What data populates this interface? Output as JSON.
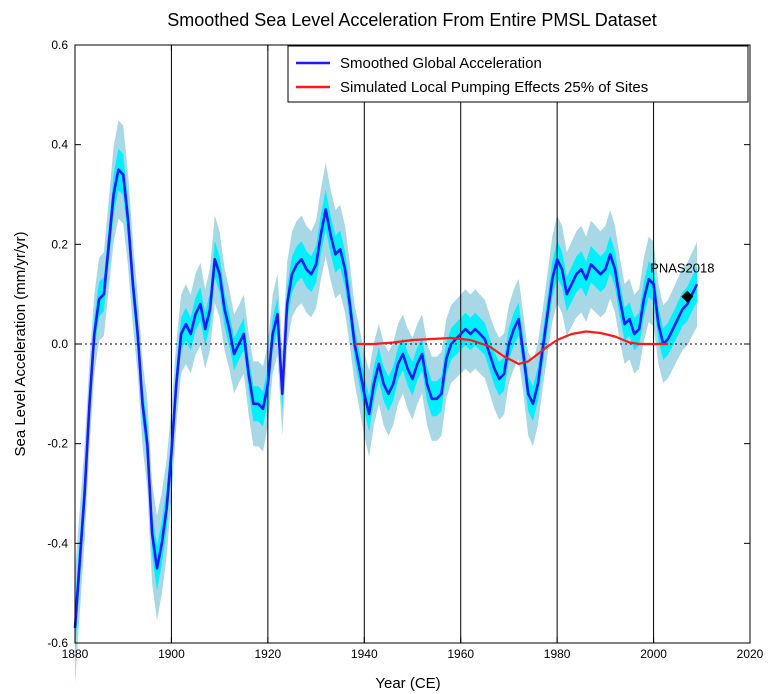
{
  "chart_data": {
    "type": "line",
    "title": "Smoothed Sea Level Acceleration From Entire PMSL Dataset",
    "xlabel": "Year (CE)",
    "ylabel": "Sea Level Acceleration (mm/yr/yr)",
    "xlim": [
      1880,
      2020
    ],
    "ylim": [
      -0.6,
      0.6
    ],
    "x_ticks": [
      "1880",
      "1900",
      "1920",
      "1940",
      "1960",
      "1980",
      "2000",
      "2020"
    ],
    "y_ticks": [
      "-0.6",
      "-0.4",
      "-0.2",
      "0.0",
      "0.2",
      "0.4",
      "0.6"
    ],
    "vertical_lines": [
      1900,
      1920,
      1940,
      1960,
      1980,
      2000
    ],
    "zero_line": "dotted",
    "legend_position": "top-right",
    "series": [
      {
        "name": "Smoothed Global Acceleration",
        "color": "#1a1aff",
        "band_inner_color": "#00f0ff",
        "band_outer_color": "#a8d8e6",
        "points": [
          [
            1880,
            -0.57
          ],
          [
            1882,
            -0.3
          ],
          [
            1883,
            -0.12
          ],
          [
            1884,
            0.02
          ],
          [
            1885,
            0.09
          ],
          [
            1886,
            0.1
          ],
          [
            1887,
            0.2
          ],
          [
            1888,
            0.3
          ],
          [
            1889,
            0.35
          ],
          [
            1890,
            0.34
          ],
          [
            1891,
            0.25
          ],
          [
            1892,
            0.12
          ],
          [
            1893,
            0.02
          ],
          [
            1894,
            -0.12
          ],
          [
            1895,
            -0.2
          ],
          [
            1896,
            -0.38
          ],
          [
            1897,
            -0.45
          ],
          [
            1898,
            -0.4
          ],
          [
            1899,
            -0.33
          ],
          [
            1900,
            -0.22
          ],
          [
            1901,
            -0.08
          ],
          [
            1902,
            0.02
          ],
          [
            1903,
            0.04
          ],
          [
            1904,
            0.02
          ],
          [
            1905,
            0.06
          ],
          [
            1906,
            0.08
          ],
          [
            1907,
            0.03
          ],
          [
            1908,
            0.07
          ],
          [
            1909,
            0.17
          ],
          [
            1910,
            0.14
          ],
          [
            1911,
            0.07
          ],
          [
            1912,
            0.03
          ],
          [
            1913,
            -0.02
          ],
          [
            1914,
            0.0
          ],
          [
            1915,
            0.02
          ],
          [
            1916,
            -0.06
          ],
          [
            1917,
            -0.12
          ],
          [
            1918,
            -0.12
          ],
          [
            1919,
            -0.13
          ],
          [
            1920,
            -0.08
          ],
          [
            1921,
            0.02
          ],
          [
            1922,
            0.06
          ],
          [
            1923,
            -0.1
          ],
          [
            1924,
            0.08
          ],
          [
            1925,
            0.14
          ],
          [
            1926,
            0.16
          ],
          [
            1927,
            0.17
          ],
          [
            1928,
            0.15
          ],
          [
            1929,
            0.14
          ],
          [
            1930,
            0.16
          ],
          [
            1931,
            0.22
          ],
          [
            1932,
            0.27
          ],
          [
            1933,
            0.22
          ],
          [
            1934,
            0.18
          ],
          [
            1935,
            0.19
          ],
          [
            1936,
            0.15
          ],
          [
            1937,
            0.08
          ],
          [
            1938,
            0.0
          ],
          [
            1939,
            -0.05
          ],
          [
            1940,
            -0.1
          ],
          [
            1941,
            -0.14
          ],
          [
            1942,
            -0.08
          ],
          [
            1943,
            -0.04
          ],
          [
            1944,
            -0.08
          ],
          [
            1945,
            -0.1
          ],
          [
            1946,
            -0.08
          ],
          [
            1947,
            -0.04
          ],
          [
            1948,
            -0.02
          ],
          [
            1949,
            -0.05
          ],
          [
            1950,
            -0.07
          ],
          [
            1951,
            -0.04
          ],
          [
            1952,
            -0.02
          ],
          [
            1953,
            -0.08
          ],
          [
            1954,
            -0.11
          ],
          [
            1955,
            -0.11
          ],
          [
            1956,
            -0.1
          ],
          [
            1957,
            -0.03
          ],
          [
            1958,
            0.0
          ],
          [
            1959,
            0.01
          ],
          [
            1960,
            0.02
          ],
          [
            1961,
            0.03
          ],
          [
            1962,
            0.02
          ],
          [
            1963,
            0.03
          ],
          [
            1964,
            0.02
          ],
          [
            1965,
            0.01
          ],
          [
            1966,
            -0.02
          ],
          [
            1967,
            -0.05
          ],
          [
            1968,
            -0.07
          ],
          [
            1969,
            -0.06
          ],
          [
            1970,
            0.0
          ],
          [
            1971,
            0.03
          ],
          [
            1972,
            0.05
          ],
          [
            1973,
            -0.02
          ],
          [
            1974,
            -0.1
          ],
          [
            1975,
            -0.12
          ],
          [
            1976,
            -0.08
          ],
          [
            1977,
            -0.01
          ],
          [
            1978,
            0.06
          ],
          [
            1979,
            0.13
          ],
          [
            1980,
            0.17
          ],
          [
            1981,
            0.15
          ],
          [
            1982,
            0.1
          ],
          [
            1983,
            0.12
          ],
          [
            1984,
            0.14
          ],
          [
            1985,
            0.15
          ],
          [
            1986,
            0.13
          ],
          [
            1987,
            0.16
          ],
          [
            1988,
            0.15
          ],
          [
            1989,
            0.14
          ],
          [
            1990,
            0.15
          ],
          [
            1991,
            0.18
          ],
          [
            1992,
            0.15
          ],
          [
            1993,
            0.09
          ],
          [
            1994,
            0.04
          ],
          [
            1995,
            0.05
          ],
          [
            1996,
            0.02
          ],
          [
            1997,
            0.03
          ],
          [
            1998,
            0.09
          ],
          [
            1999,
            0.13
          ],
          [
            2000,
            0.12
          ],
          [
            2001,
            0.04
          ],
          [
            2002,
            0.0
          ],
          [
            2003,
            0.01
          ],
          [
            2004,
            0.03
          ],
          [
            2005,
            0.05
          ],
          [
            2006,
            0.07
          ],
          [
            2007,
            0.08
          ],
          [
            2008,
            0.1
          ],
          [
            2009,
            0.12
          ]
        ]
      },
      {
        "name": "Simulated Local Pumping Effects 25% of Sites",
        "color": "#ff1a1a",
        "points": [
          [
            1938,
            0.0
          ],
          [
            1942,
            0.0
          ],
          [
            1946,
            0.003
          ],
          [
            1950,
            0.008
          ],
          [
            1954,
            0.01
          ],
          [
            1958,
            0.012
          ],
          [
            1962,
            0.008
          ],
          [
            1966,
            -0.005
          ],
          [
            1969,
            -0.025
          ],
          [
            1972,
            -0.04
          ],
          [
            1974,
            -0.035
          ],
          [
            1976,
            -0.02
          ],
          [
            1978,
            -0.005
          ],
          [
            1980,
            0.008
          ],
          [
            1983,
            0.02
          ],
          [
            1986,
            0.025
          ],
          [
            1989,
            0.022
          ],
          [
            1992,
            0.015
          ],
          [
            1995,
            0.003
          ],
          [
            1997,
            0.0
          ],
          [
            2003,
            0.0
          ]
        ]
      }
    ],
    "annotations": [
      {
        "text": "PNAS2018",
        "x": 2007,
        "y": 0.095,
        "marker": "diamond",
        "marker_color": "#000000"
      }
    ]
  }
}
